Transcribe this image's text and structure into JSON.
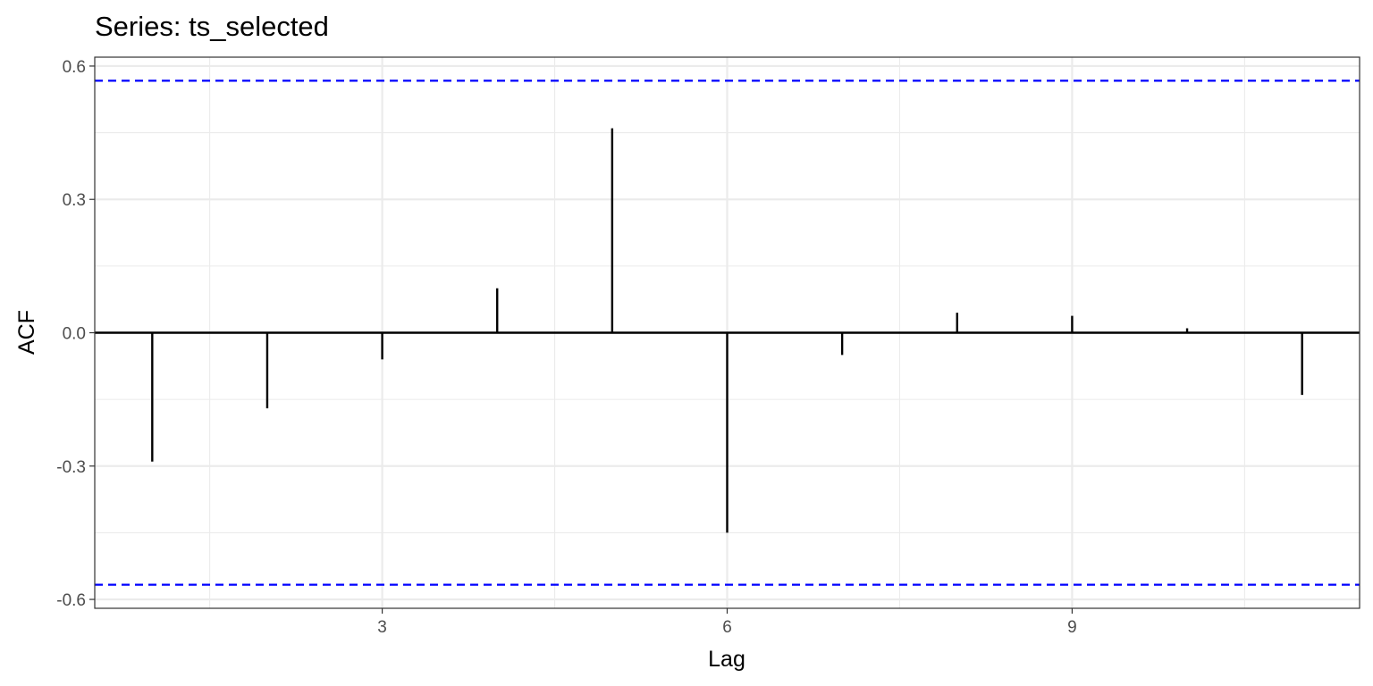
{
  "chart_data": {
    "type": "bar",
    "title": "Series: ts_selected",
    "xlabel": "Lag",
    "ylabel": "ACF",
    "xlim": [
      0.5,
      11.5
    ],
    "ylim": [
      -0.62,
      0.62
    ],
    "x_ticks": [
      3,
      6,
      9
    ],
    "x_tick_labels": [
      "3",
      "6",
      "9"
    ],
    "y_ticks": [
      -0.6,
      -0.3,
      0.0,
      0.3,
      0.6
    ],
    "y_tick_labels": [
      "-0.6",
      "-0.3",
      "0.0",
      "0.3",
      "0.6"
    ],
    "lags": [
      1,
      2,
      3,
      4,
      5,
      6,
      7,
      8,
      9,
      10,
      11
    ],
    "values": [
      -0.29,
      -0.17,
      -0.06,
      0.1,
      0.46,
      -0.45,
      -0.05,
      0.045,
      0.038,
      0.01,
      -0.14
    ],
    "confidence_bound": 0.567,
    "grid": true,
    "colors": {
      "bars": "#000000",
      "bounds": "#0000ff",
      "grid": "#ebebeb",
      "zero_line": "#000000"
    }
  }
}
